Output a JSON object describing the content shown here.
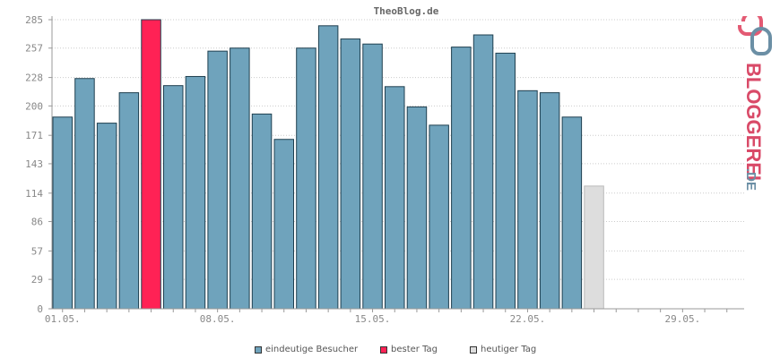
{
  "chart_data": {
    "type": "bar",
    "title": "TheoBlog.de",
    "ylim": [
      0,
      285
    ],
    "yticks": [
      0,
      29,
      57,
      86,
      114,
      143,
      171,
      200,
      228,
      257,
      285
    ],
    "xtick_labels": [
      {
        "label": "01.05.",
        "index": 0
      },
      {
        "label": "08.05.",
        "index": 7
      },
      {
        "label": "15.05.",
        "index": 14
      },
      {
        "label": "22.05.",
        "index": 21
      },
      {
        "label": "29.05.",
        "index": 28
      }
    ],
    "num_days": 31,
    "values": [
      189,
      227,
      183,
      213,
      285,
      220,
      229,
      254,
      257,
      192,
      167,
      257,
      279,
      266,
      261,
      219,
      199,
      181,
      258,
      270,
      252,
      215,
      213,
      189,
      121
    ],
    "kinds": [
      "v",
      "v",
      "v",
      "v",
      "best",
      "v",
      "v",
      "v",
      "v",
      "v",
      "v",
      "v",
      "v",
      "v",
      "v",
      "v",
      "v",
      "v",
      "v",
      "v",
      "v",
      "v",
      "v",
      "v",
      "today"
    ],
    "colors": {
      "v": "#6fa3bc",
      "best": "#ff2255",
      "today": "#dddddd"
    },
    "legend": [
      {
        "label": "eindeutige Besucher",
        "kind": "v"
      },
      {
        "label": "bester Tag",
        "kind": "best"
      },
      {
        "label": "heutiger Tag",
        "kind": "today"
      }
    ],
    "grid": true
  },
  "logo": {
    "text": "BLOGGEREI",
    "suffix": ".DE"
  }
}
